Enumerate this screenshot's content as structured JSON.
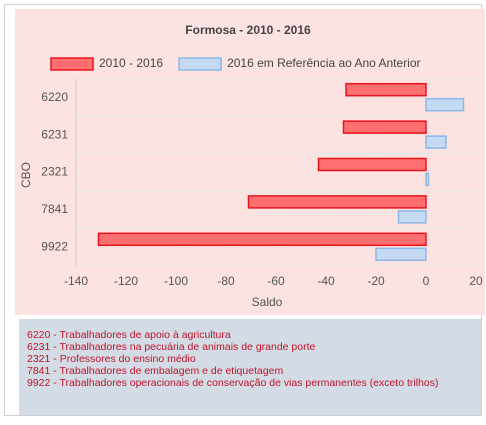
{
  "chart_data": {
    "type": "hbar",
    "title": "Formosa - 2010 - 2016",
    "categories": [
      "6220",
      "6231",
      "2321",
      "7841",
      "9922"
    ],
    "series": [
      {
        "name": "2010 - 2016",
        "color": "#ff6f6f",
        "border": "#e8141e",
        "values": [
          -32,
          -33,
          -43,
          -71,
          -131
        ]
      },
      {
        "name": "2016 em Referência ao Ano Anterior",
        "color": "#c4daf2",
        "border": "#8db8e6",
        "values": [
          15,
          8,
          1,
          -11,
          -20
        ]
      }
    ],
    "xlabel": "Saldo",
    "ylabel": "CBO",
    "xlim": [
      -140,
      20
    ],
    "xticks": [
      -140,
      -120,
      -100,
      -80,
      -60,
      -40,
      -20,
      0,
      20
    ],
    "grid": true
  },
  "notes": [
    "6220 - Trabalhadores de apoio à agricultura",
    "6231 - Trabalhadores na pecuária de animais de grande porte",
    "2321 - Professores do ensino médio",
    "7841 - Trabalhadores de embalagem e de etiquetagem",
    "9922 - Trabalhadores operacionais de conservação de vias permanentes (exceto trilhos)"
  ]
}
